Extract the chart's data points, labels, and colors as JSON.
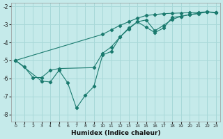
{
  "title": "",
  "xlabel": "Humidex (Indice chaleur)",
  "ylabel": "",
  "background_color": "#c5eaea",
  "grid_color": "#a8d8d8",
  "line_color": "#1a7a6e",
  "xlim": [
    -0.5,
    23.5
  ],
  "ylim": [
    -8.4,
    -1.8
  ],
  "xticks": [
    0,
    1,
    2,
    3,
    4,
    5,
    6,
    7,
    8,
    9,
    10,
    11,
    12,
    13,
    14,
    15,
    16,
    17,
    18,
    19,
    20,
    21,
    22,
    23
  ],
  "yticks": [
    -8,
    -7,
    -6,
    -5,
    -4,
    -3,
    -2
  ],
  "line1_x": [
    0,
    10,
    11,
    12,
    13,
    14,
    15,
    16,
    17,
    18,
    19,
    20,
    21,
    22,
    23
  ],
  "line1_y": [
    -5.0,
    -3.55,
    -3.3,
    -3.05,
    -2.85,
    -2.65,
    -2.5,
    -2.45,
    -2.4,
    -2.38,
    -2.36,
    -2.34,
    -2.32,
    -2.3,
    -2.32
  ],
  "line2_x": [
    0,
    1,
    2,
    3,
    4,
    5,
    9,
    10,
    11,
    12,
    13,
    14,
    15,
    16,
    17,
    18,
    19,
    20,
    21,
    22,
    23
  ],
  "line2_y": [
    -5.0,
    -5.35,
    -5.95,
    -5.95,
    -5.55,
    -5.45,
    -5.4,
    -4.6,
    -4.25,
    -3.7,
    -3.25,
    -2.85,
    -3.15,
    -3.45,
    -3.2,
    -2.6,
    -2.55,
    -2.45,
    -2.4,
    -2.3,
    -2.35
  ],
  "line3_x": [
    0,
    3,
    4,
    5,
    6,
    7,
    8,
    9,
    10,
    11,
    12,
    13,
    14,
    15,
    16,
    17,
    18,
    19,
    20,
    21,
    22,
    23
  ],
  "line3_y": [
    -5.0,
    -6.15,
    -6.2,
    -5.55,
    -6.25,
    -7.65,
    -6.95,
    -6.45,
    -4.7,
    -4.5,
    -3.7,
    -3.2,
    -2.85,
    -2.75,
    -3.35,
    -3.05,
    -2.72,
    -2.55,
    -2.45,
    -2.38,
    -2.3,
    -2.35
  ]
}
